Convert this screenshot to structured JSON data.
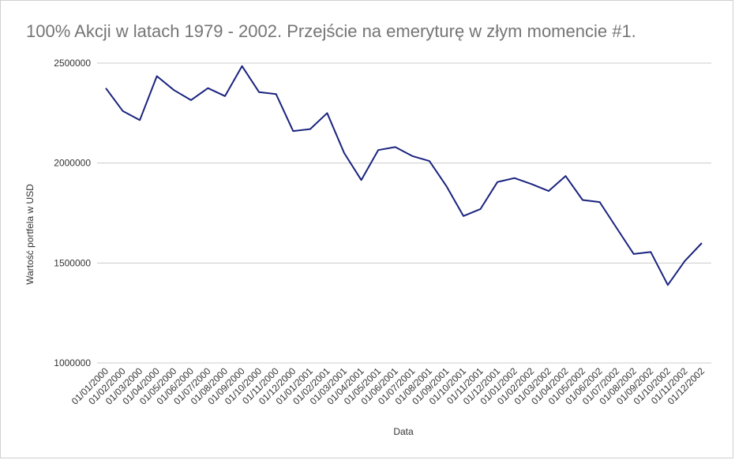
{
  "chart_data": {
    "type": "line",
    "title": "100% Akcji w latach 1979 - 2002. Przejście na emeryturę w złym momencie #1.",
    "xlabel": "Data",
    "ylabel": "Wartość portfela w USD",
    "ylim": [
      1000000,
      2500000
    ],
    "yticks": [
      "1000000",
      "1500000",
      "2000000",
      "2500000"
    ],
    "grid": true,
    "line_color": "#1a237e",
    "categories": [
      "01/01/2000",
      "01/02/2000",
      "01/03/2000",
      "01/04/2000",
      "01/05/2000",
      "01/06/2000",
      "01/07/2000",
      "01/08/2000",
      "01/09/2000",
      "01/10/2000",
      "01/11/2000",
      "01/12/2000",
      "01/01/2001",
      "01/02/2001",
      "01/03/2001",
      "01/04/2001",
      "01/05/2001",
      "01/06/2001",
      "01/07/2001",
      "01/08/2001",
      "01/09/2001",
      "01/10/2001",
      "01/11/2001",
      "01/12/2001",
      "01/01/2002",
      "01/02/2002",
      "01/03/2002",
      "01/04/2002",
      "01/05/2002",
      "01/06/2002",
      "01/07/2002",
      "01/08/2002",
      "01/09/2002",
      "01/10/2002",
      "01/11/2002",
      "01/12/2002"
    ],
    "series": [
      {
        "values": [
          2375000,
          2260000,
          2215000,
          2435000,
          2365000,
          2315000,
          2375000,
          2335000,
          2485000,
          2355000,
          2345000,
          2160000,
          2170000,
          2250000,
          2050000,
          1915000,
          2065000,
          2080000,
          2035000,
          2010000,
          1885000,
          1735000,
          1770000,
          1905000,
          1925000,
          1895000,
          1860000,
          1935000,
          1815000,
          1805000,
          1675000,
          1545000,
          1555000,
          1390000,
          1510000,
          1600000
        ]
      }
    ]
  }
}
